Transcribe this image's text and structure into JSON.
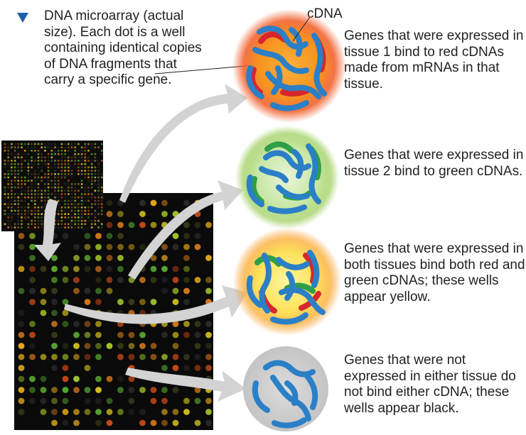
{
  "caption": "DNA microarray (actual size). Each dot is a well containing identical copies of DNA fragments that carry a specific gene.",
  "cdna_label": "cDNA",
  "wells": [
    {
      "id": "tissue1",
      "description": "Genes that were expressed in tissue 1 bind to red cDNAs made from mRNAs in that tissue.",
      "glow_color": "#f15a24"
    },
    {
      "id": "tissue2",
      "description": "Genes that were expressed in tissue 2 bind to green cDNAs.",
      "glow_color": "#8cc63f"
    },
    {
      "id": "both",
      "description": "Genes that were expressed in both tissues bind both red and green cDNAs; these wells appear yellow.",
      "glow_color": "#fbb03b"
    },
    {
      "id": "neither",
      "description": "Genes that were not expressed in either tissue do not bind either cDNA; these wells appear black.",
      "glow_color": "#bdbdbd"
    }
  ],
  "colors": {
    "dna_blue": "#2b7fc6",
    "cdna_red": "#d7262d",
    "cdna_green": "#2e9e48",
    "arrow_gray": "#d3d3d3",
    "marker_blue": "#1f5fa8"
  }
}
